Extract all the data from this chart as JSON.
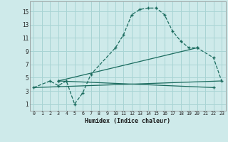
{
  "title": "",
  "xlabel": "Humidex (Indice chaleur)",
  "bg_color": "#ceeaea",
  "grid_color": "#a8d4d4",
  "line_color": "#1a6b5e",
  "xlim": [
    -0.5,
    23.5
  ],
  "ylim": [
    0,
    16.5
  ],
  "xticks": [
    0,
    1,
    2,
    3,
    4,
    5,
    6,
    7,
    8,
    9,
    10,
    11,
    12,
    13,
    14,
    15,
    16,
    17,
    18,
    19,
    20,
    21,
    22,
    23
  ],
  "yticks": [
    1,
    3,
    5,
    7,
    9,
    11,
    13,
    15
  ],
  "line1_x": [
    0,
    2,
    3,
    4,
    5,
    6,
    7,
    10,
    11,
    12,
    13,
    14,
    15,
    16,
    17,
    18,
    19,
    20,
    22,
    23
  ],
  "line1_y": [
    3.5,
    4.5,
    3.8,
    4.5,
    1.0,
    2.7,
    5.5,
    9.5,
    11.5,
    14.5,
    15.3,
    15.5,
    15.5,
    14.5,
    12.0,
    10.5,
    9.5,
    9.5,
    8.0,
    4.5
  ],
  "line2_x": [
    0,
    23
  ],
  "line2_y": [
    3.5,
    4.5
  ],
  "line3_x": [
    3,
    20
  ],
  "line3_y": [
    4.5,
    9.5
  ],
  "line4_x": [
    3,
    22
  ],
  "line4_y": [
    4.5,
    3.5
  ]
}
